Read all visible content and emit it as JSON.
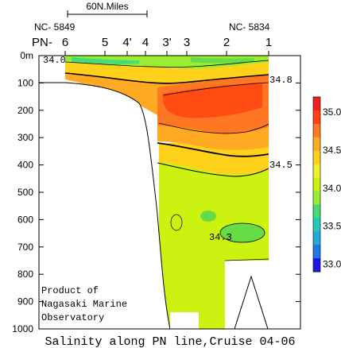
{
  "chart_data": {
    "type": "heatmap",
    "title": "Salinity along PN line,Cruise 04-06",
    "xlabel": "",
    "ylabel": "",
    "y_unit_label": "0m",
    "ylim": [
      0,
      1000
    ],
    "y_ticks": [
      0,
      100,
      200,
      300,
      400,
      500,
      600,
      700,
      800,
      900,
      1000
    ],
    "y_tick_labels": [
      "0m",
      "100",
      "200",
      "300",
      "400",
      "500",
      "600",
      "700",
      "800",
      "900",
      "1000"
    ],
    "stations": [
      "6",
      "5",
      "4'",
      "4",
      "3'",
      "3",
      "2",
      "1"
    ],
    "station_prefix": "PN-",
    "station_ids": {
      "left": "NC- 5849",
      "right": "NC- 5834"
    },
    "scale_bar_label": "60N.Miles",
    "colorbar": {
      "ticks": [
        35.0,
        34.5,
        34.0,
        33.5,
        33.0
      ],
      "tick_labels": [
        "35.0",
        "34.5",
        "34.0",
        "33.5",
        "33.0"
      ],
      "range": [
        32.9,
        35.2
      ],
      "colors": [
        "#1a1ae0",
        "#1f78e8",
        "#22aadd",
        "#22ccb8",
        "#44dd77",
        "#99ee33",
        "#ccf211",
        "#eef033",
        "#ffd11a",
        "#ffaa22",
        "#ff7722",
        "#ff4411",
        "#ee2222"
      ]
    },
    "contour_labels": [
      "34.0",
      "34.8",
      "34.5",
      "34.3"
    ],
    "notes": "Product of\nNagasaki Marine\nObservatory",
    "colors": {
      "core_max": "#ee4422",
      "high": "#ff7722",
      "mid_high": "#ffaa22",
      "mid": "#ffd11a",
      "deep": "#ccf211",
      "low_patch": "#66dd44"
    }
  }
}
